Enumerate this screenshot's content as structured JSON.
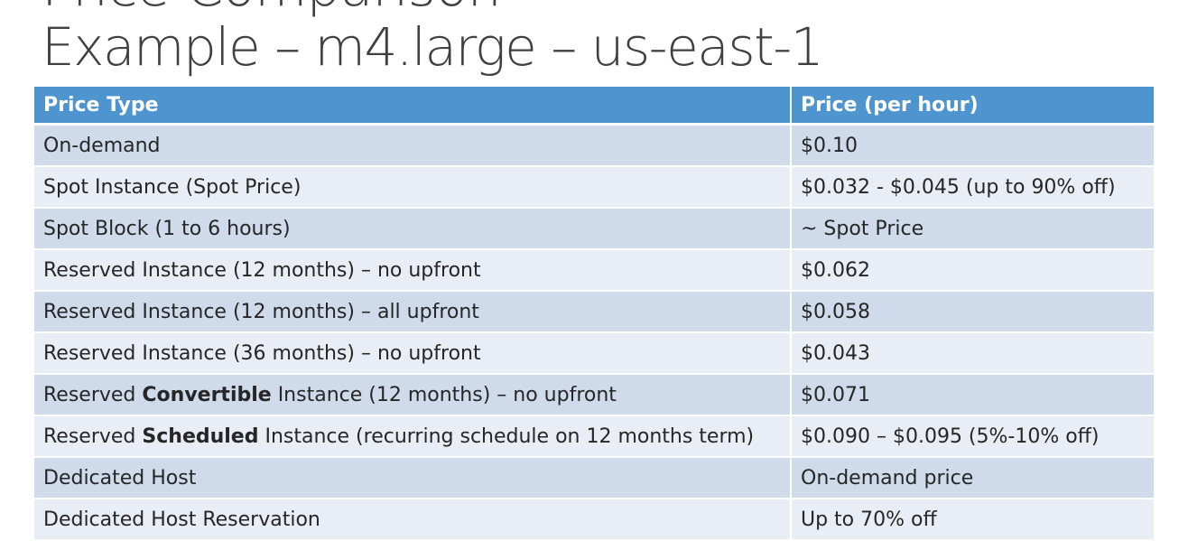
{
  "slide": {
    "title_cut": "Price Comparison",
    "title": "Example – m4.large – us-east-1"
  },
  "table": {
    "headers": [
      "Price Type",
      "Price (per hour)"
    ],
    "rows": [
      {
        "pre": "On-demand",
        "em": "",
        "post": "",
        "price": "$0.10"
      },
      {
        "pre": "Spot Instance (Spot Price)",
        "em": "",
        "post": "",
        "price": "$0.032 - $0.045 (up to 90% off)"
      },
      {
        "pre": "Spot Block (1 to 6 hours)",
        "em": "",
        "post": "",
        "price": "~ Spot Price"
      },
      {
        "pre": "Reserved Instance (12 months) – no upfront",
        "em": "",
        "post": "",
        "price": "$0.062"
      },
      {
        "pre": "Reserved Instance (12 months) – all upfront",
        "em": "",
        "post": "",
        "price": "$0.058"
      },
      {
        "pre": "Reserved Instance (36 months) – no upfront",
        "em": "",
        "post": "",
        "price": "$0.043"
      },
      {
        "pre": "Reserved ",
        "em": "Convertible",
        "post": " Instance (12 months) – no upfront",
        "price": "$0.071"
      },
      {
        "pre": "Reserved ",
        "em": "Scheduled",
        "post": " Instance (recurring schedule on 12 months term)",
        "price": "$0.090 – $0.095 (5%-10% off)"
      },
      {
        "pre": "Dedicated Host",
        "em": "",
        "post": "",
        "price": "On-demand price"
      },
      {
        "pre": "Dedicated Host Reservation",
        "em": "",
        "post": "",
        "price": "Up to 70% off"
      }
    ]
  },
  "colors": {
    "header_bg": "#4e95d0",
    "row_odd_bg": "#cfdaeb",
    "row_even_bg": "#e9edf5",
    "title_text": "#404040"
  }
}
